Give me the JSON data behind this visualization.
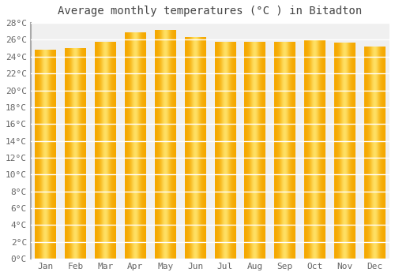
{
  "title": "Average monthly temperatures (°C ) in Bitadton",
  "months": [
    "Jan",
    "Feb",
    "Mar",
    "Apr",
    "May",
    "Jun",
    "Jul",
    "Aug",
    "Sep",
    "Oct",
    "Nov",
    "Dec"
  ],
  "values": [
    24.8,
    24.9,
    25.7,
    26.8,
    27.1,
    26.3,
    25.7,
    25.7,
    25.7,
    25.9,
    25.6,
    25.1
  ],
  "bar_color_left": "#F5A800",
  "bar_color_center": "#FFD966",
  "bar_color_right": "#F5A800",
  "ylim": [
    0,
    28
  ],
  "ytick_step": 2,
  "background_color": "#ffffff",
  "plot_bg_color": "#f0f0f0",
  "grid_color": "#ffffff",
  "title_fontsize": 10,
  "tick_fontsize": 8
}
